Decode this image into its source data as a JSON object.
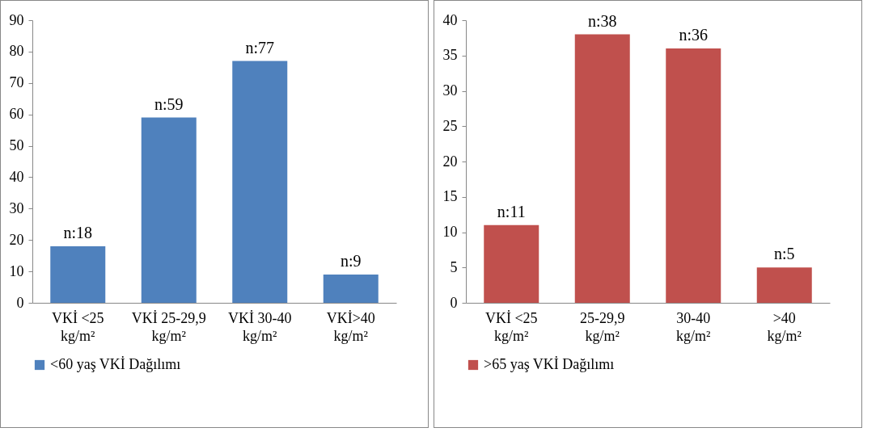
{
  "chart_data": [
    {
      "type": "bar",
      "categories": [
        "VKİ <25 kg/m²",
        "VKİ 25-29,9 kg/m²",
        "VKİ 30-40 kg/m²",
        "VKİ>40 kg/m²"
      ],
      "series": [
        {
          "name": "<60 yaş VKİ Dağılımı",
          "color": "#4f81bd",
          "values": [
            18,
            59,
            77,
            9
          ],
          "value_labels": [
            "n:18",
            "n:59",
            "n:77",
            "n:9"
          ]
        }
      ],
      "ylim": [
        0,
        90
      ],
      "yticks": [
        0,
        10,
        20,
        30,
        40,
        50,
        60,
        70,
        80,
        90
      ],
      "grid": false,
      "legend": "bottom"
    },
    {
      "type": "bar",
      "categories": [
        "VKİ <25 kg/m²",
        "25-29,9 kg/m²",
        "30-40 kg/m²",
        ">40 kg/m²"
      ],
      "series": [
        {
          "name": ">65 yaş VKİ Dağılımı",
          "color": "#c0504d",
          "values": [
            11,
            38,
            36,
            5
          ],
          "value_labels": [
            "n:11",
            "n:38",
            "n:36",
            "n:5"
          ]
        }
      ],
      "ylim": [
        0,
        40
      ],
      "yticks": [
        0,
        5,
        10,
        15,
        20,
        25,
        30,
        35,
        40
      ],
      "grid": false,
      "legend": "bottom"
    }
  ]
}
